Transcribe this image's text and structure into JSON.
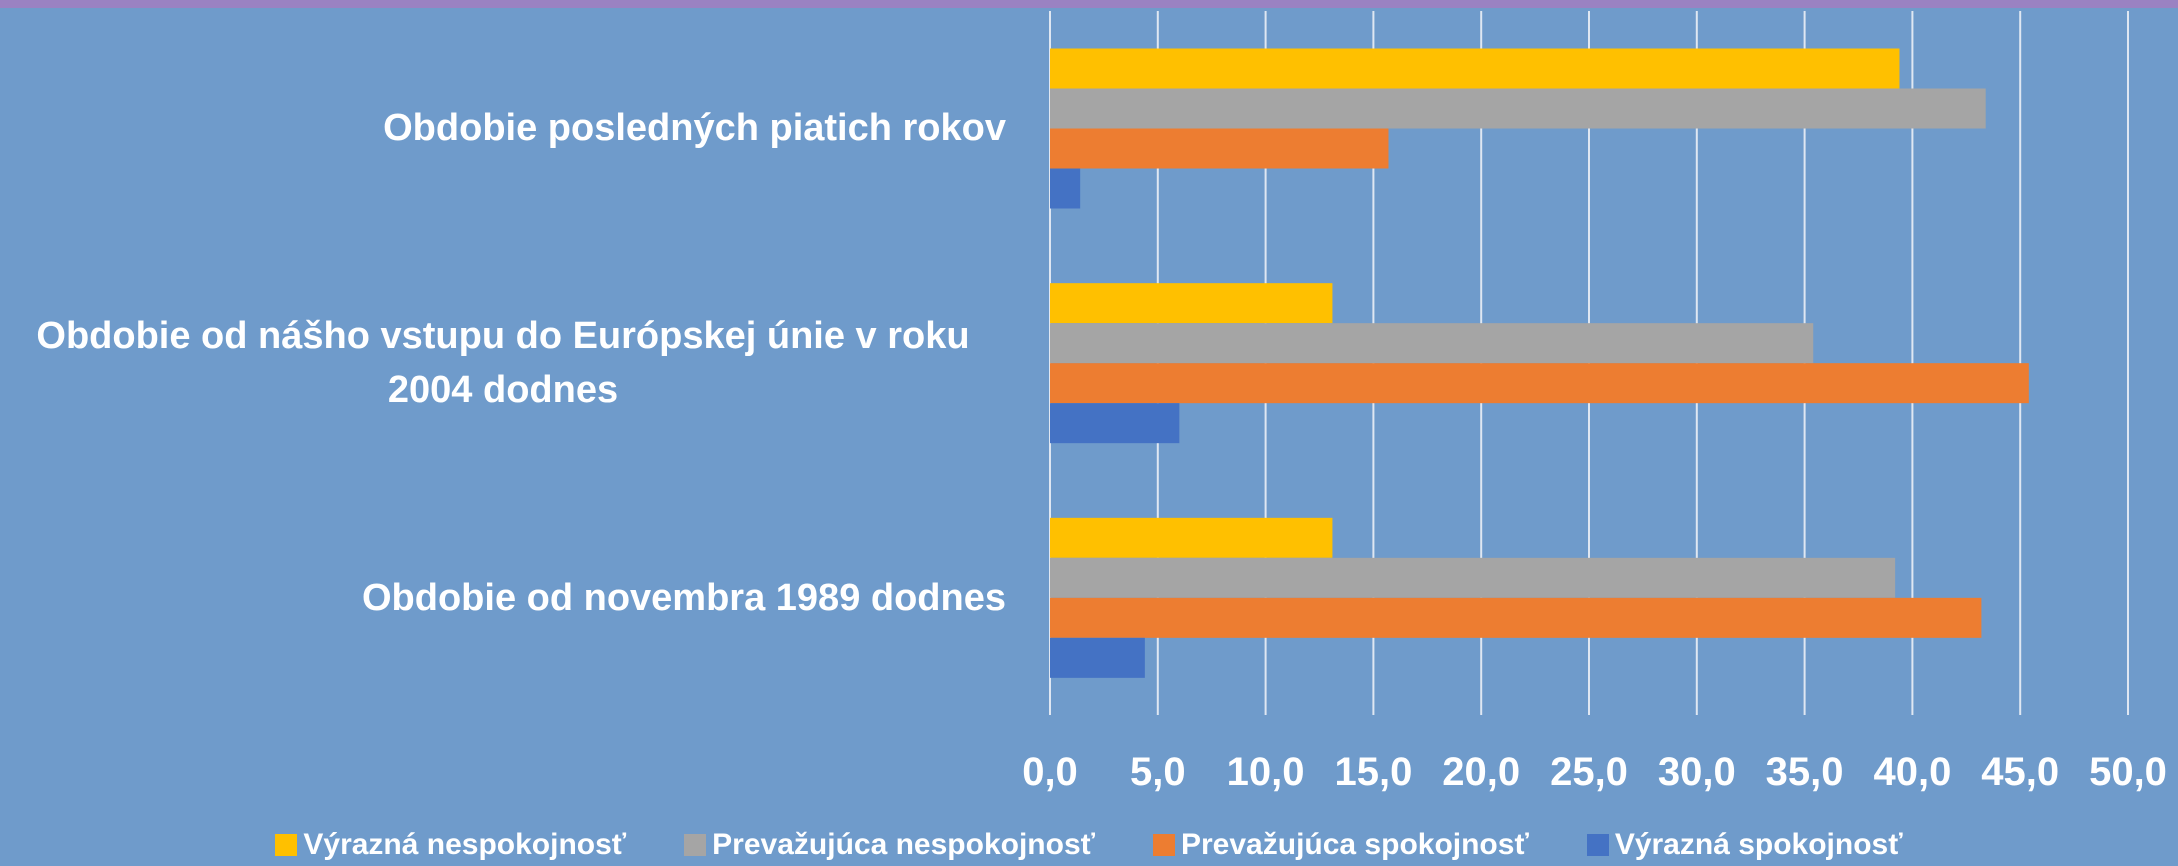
{
  "chart_data": {
    "type": "bar",
    "orientation": "horizontal",
    "categories": [
      "Obdobie posledných piatich rokov",
      "Obdobie od nášho vstupu do Európskej únie v roku 2004 dodnes",
      "Obdobie od novembra 1989 dodnes"
    ],
    "series": [
      {
        "name": "Výrazná nespokojnosť",
        "color": "#ffc000",
        "values": [
          39.4,
          13.1,
          13.1
        ]
      },
      {
        "name": "Prevažujúca nespokojnosť",
        "color": "#a5a5a5",
        "values": [
          43.4,
          35.4,
          39.2
        ]
      },
      {
        "name": "Prevažujúca spokojnosť",
        "color": "#ed7d31",
        "values": [
          15.7,
          45.4,
          43.2
        ]
      },
      {
        "name": "Výrazná spokojnosť",
        "color": "#4472c4",
        "values": [
          1.4,
          6.0,
          4.4
        ]
      }
    ],
    "xlim": [
      0,
      50
    ],
    "xticks": [
      {
        "value": 0,
        "label": "0,0"
      },
      {
        "value": 5,
        "label": "5,0"
      },
      {
        "value": 10,
        "label": "10,0"
      },
      {
        "value": 15,
        "label": "15,0"
      },
      {
        "value": 20,
        "label": "20,0"
      },
      {
        "value": 25,
        "label": "25,0"
      },
      {
        "value": 30,
        "label": "30,0"
      },
      {
        "value": 35,
        "label": "35,0"
      },
      {
        "value": 40,
        "label": "40,0"
      },
      {
        "value": 45,
        "label": "45,0"
      },
      {
        "value": 50,
        "label": "50,0"
      }
    ],
    "grid": true,
    "legend": "bottom"
  }
}
